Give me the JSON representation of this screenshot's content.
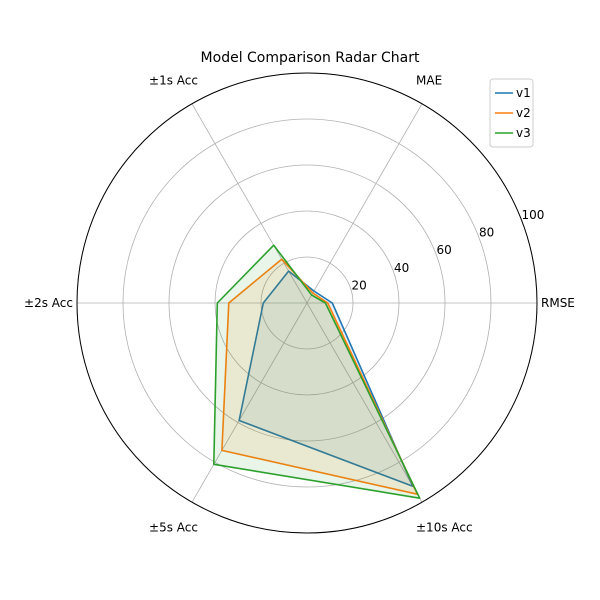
{
  "chart_data": {
    "type": "radar",
    "title": "Model Comparison Radar Chart",
    "axes": [
      "RMSE",
      "MAE",
      "±1s Acc",
      "±2s Acc",
      "±5s Acc",
      "±10s Acc"
    ],
    "rlim": [
      0,
      100
    ],
    "rticks": [
      20,
      40,
      60,
      80,
      100
    ],
    "rtick_labels": [
      "20",
      "40",
      "60",
      "80",
      "100"
    ],
    "grid": true,
    "legend_position": "top-right",
    "series": [
      {
        "name": "v1",
        "color": "#1f77b4",
        "values": [
          11,
          6,
          16,
          19,
          59,
          92
        ]
      },
      {
        "name": "v2",
        "color": "#ff7f0e",
        "values": [
          9,
          5,
          22,
          34,
          74,
          96
        ]
      },
      {
        "name": "v3",
        "color": "#2ca02c",
        "values": [
          8,
          4,
          29,
          39,
          81,
          98
        ]
      }
    ]
  }
}
